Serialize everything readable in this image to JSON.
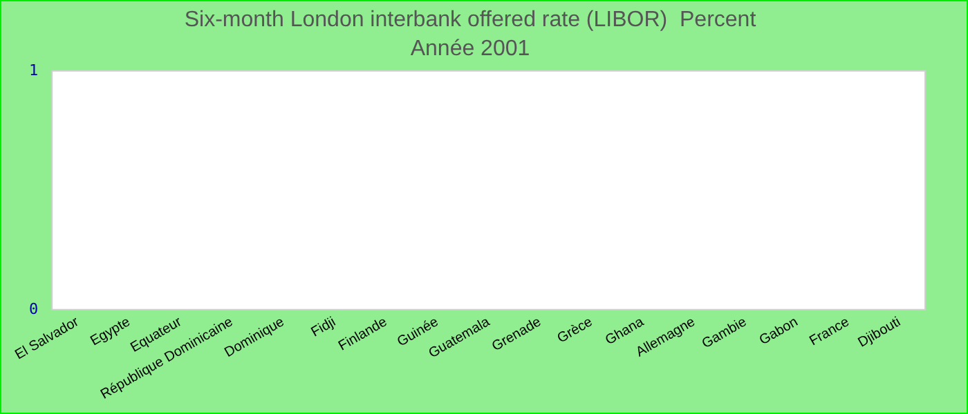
{
  "chart_data": {
    "type": "bar",
    "title": "Six-month London interbank offered rate (LIBOR)  Percent",
    "subtitle": "Année 2001",
    "categories": [
      "El Salvador",
      "Egypte",
      "Equateur",
      "République Dominicaine",
      "Dominique",
      "Fidji",
      "Finlande",
      "Guinée",
      "Guatemala",
      "Grenade",
      "Grèce",
      "Ghana",
      "Allemagne",
      "Gambie",
      "Gabon",
      "France",
      "Djibouti"
    ],
    "values": [
      null,
      null,
      null,
      null,
      null,
      null,
      null,
      null,
      null,
      null,
      null,
      null,
      null,
      null,
      null,
      null,
      null
    ],
    "ylim": [
      0,
      1
    ],
    "yticks": [
      0,
      1
    ],
    "grid": false,
    "legend": false
  }
}
